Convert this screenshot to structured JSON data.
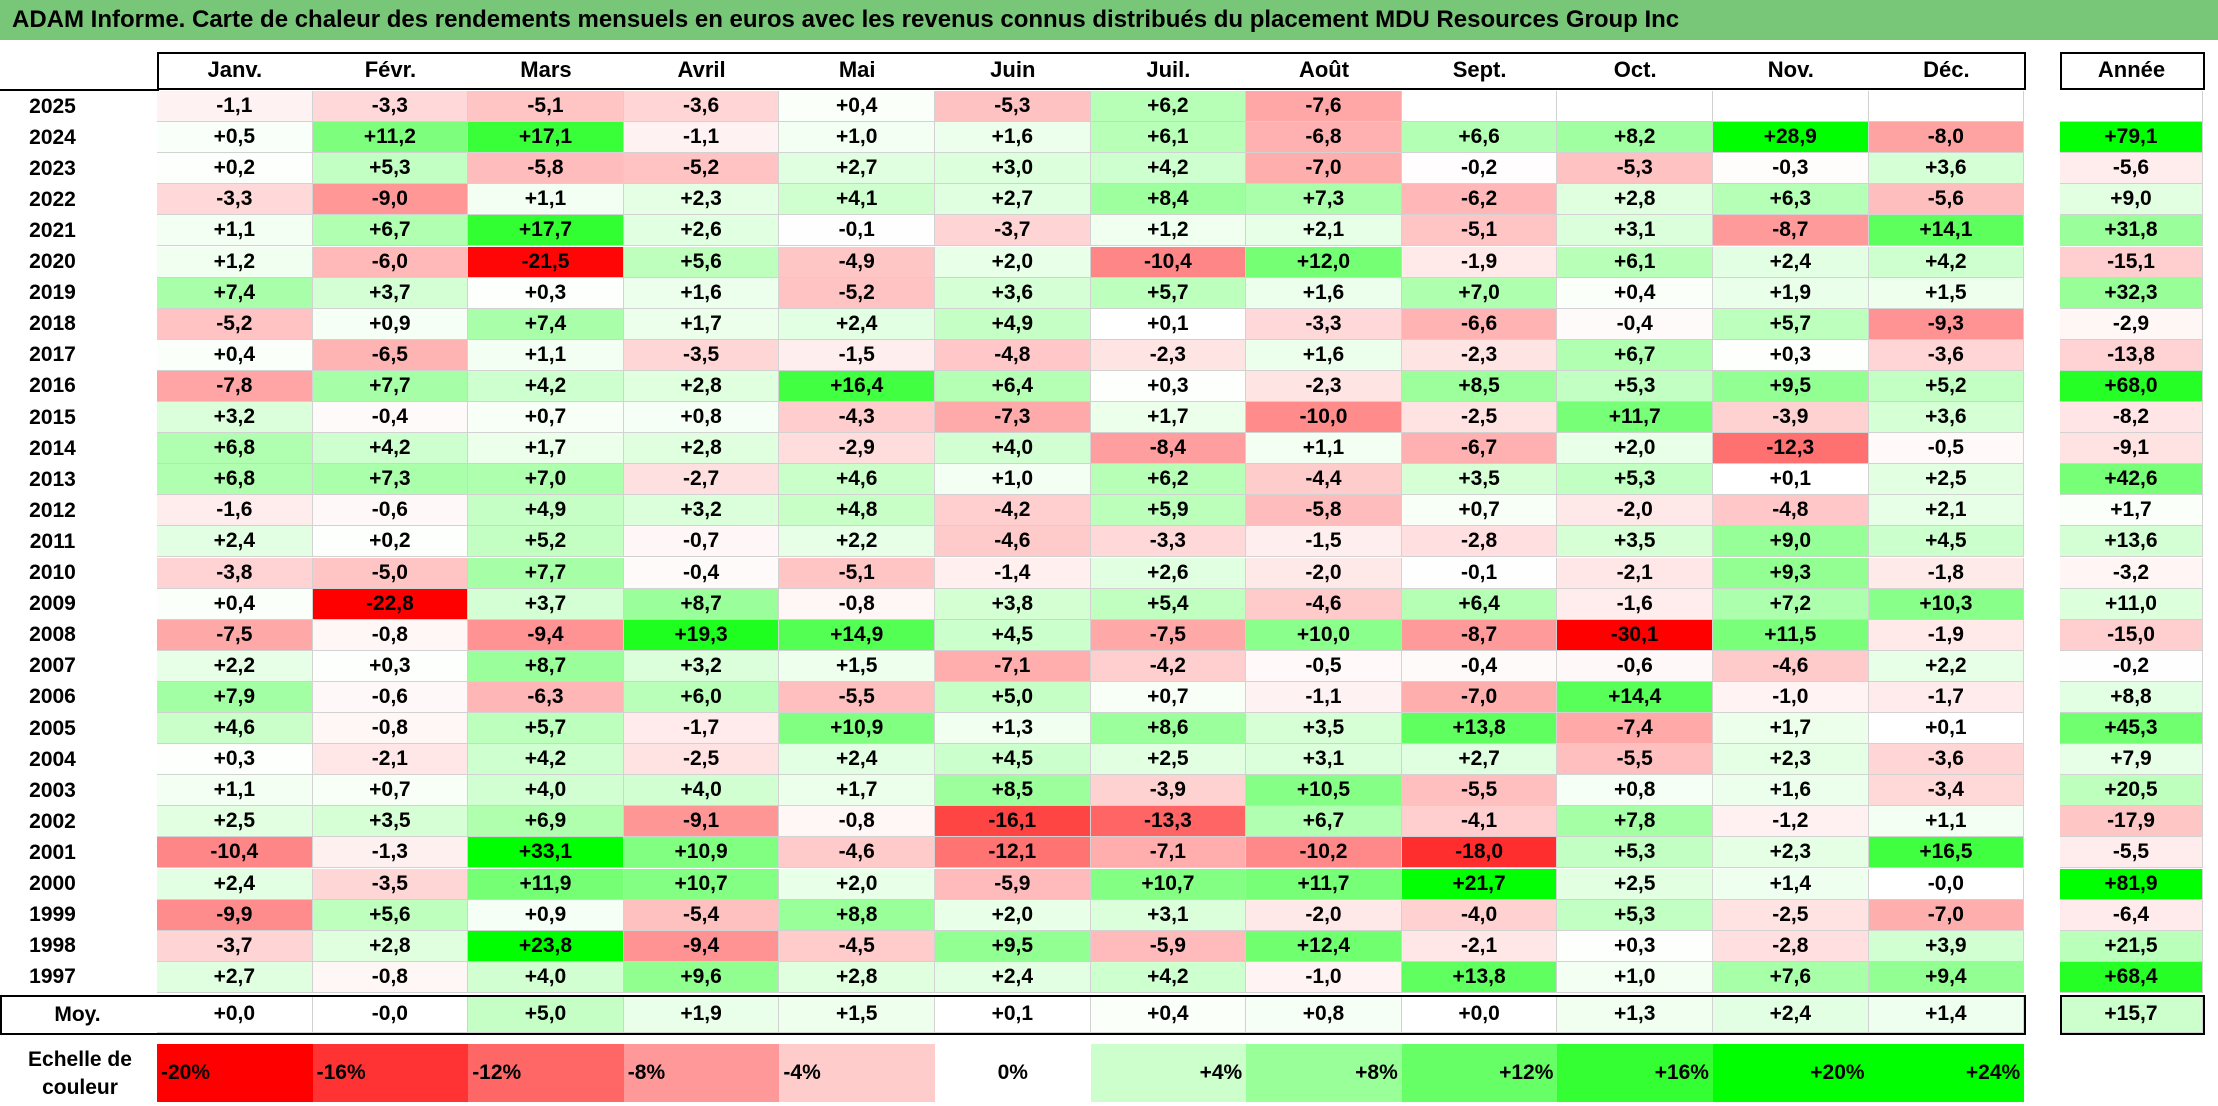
{
  "title": "ADAM Informe. Carte de chaleur des rendements mensuels en euros avec les revenus connus distribués du placement MDU Resources Group Inc",
  "colors": {
    "title_bg": "#78c678",
    "negative_max": "#ff0000",
    "neutral": "#ffffff",
    "positive_max": "#00ff00"
  },
  "chart_data": {
    "type": "heatmap",
    "months": [
      "Janv.",
      "Févr.",
      "Mars",
      "Avril",
      "Mai",
      "Juin",
      "Juil.",
      "Août",
      "Sept.",
      "Oct.",
      "Nov.",
      "Déc."
    ],
    "year_col_label": "Année",
    "avg_label": "Moy.",
    "rows": [
      {
        "year": "2025",
        "values": [
          "-1,1",
          "-3,3",
          "-5,1",
          "-3,6",
          "+0,4",
          "-5,3",
          "+6,2",
          "-7,6",
          "",
          "",
          "",
          ""
        ],
        "annual": ""
      },
      {
        "year": "2024",
        "values": [
          "+0,5",
          "+11,2",
          "+17,1",
          "-1,1",
          "+1,0",
          "+1,6",
          "+6,1",
          "-6,8",
          "+6,6",
          "+8,2",
          "+28,9",
          "-8,0"
        ],
        "annual": "+79,1"
      },
      {
        "year": "2023",
        "values": [
          "+0,2",
          "+5,3",
          "-5,8",
          "-5,2",
          "+2,7",
          "+3,0",
          "+4,2",
          "-7,0",
          "-0,2",
          "-5,3",
          "-0,3",
          "+3,6"
        ],
        "annual": "-5,6"
      },
      {
        "year": "2022",
        "values": [
          "-3,3",
          "-9,0",
          "+1,1",
          "+2,3",
          "+4,1",
          "+2,7",
          "+8,4",
          "+7,3",
          "-6,2",
          "+2,8",
          "+6,3",
          "-5,6"
        ],
        "annual": "+9,0"
      },
      {
        "year": "2021",
        "values": [
          "+1,1",
          "+6,7",
          "+17,7",
          "+2,6",
          "-0,1",
          "-3,7",
          "+1,2",
          "+2,1",
          "-5,1",
          "+3,1",
          "-8,7",
          "+14,1"
        ],
        "annual": "+31,8"
      },
      {
        "year": "2020",
        "values": [
          "+1,2",
          "-6,0",
          "-21,5",
          "+5,6",
          "-4,9",
          "+2,0",
          "-10,4",
          "+12,0",
          "-1,9",
          "+6,1",
          "+2,4",
          "+4,2"
        ],
        "annual": "-15,1"
      },
      {
        "year": "2019",
        "values": [
          "+7,4",
          "+3,7",
          "+0,3",
          "+1,6",
          "-5,2",
          "+3,6",
          "+5,7",
          "+1,6",
          "+7,0",
          "+0,4",
          "+1,9",
          "+1,5"
        ],
        "annual": "+32,3"
      },
      {
        "year": "2018",
        "values": [
          "-5,2",
          "+0,9",
          "+7,4",
          "+1,7",
          "+2,4",
          "+4,9",
          "+0,1",
          "-3,3",
          "-6,6",
          "-0,4",
          "+5,7",
          "-9,3"
        ],
        "annual": "-2,9"
      },
      {
        "year": "2017",
        "values": [
          "+0,4",
          "-6,5",
          "+1,1",
          "-3,5",
          "-1,5",
          "-4,8",
          "-2,3",
          "+1,6",
          "-2,3",
          "+6,7",
          "+0,3",
          "-3,6"
        ],
        "annual": "-13,8"
      },
      {
        "year": "2016",
        "values": [
          "-7,8",
          "+7,7",
          "+4,2",
          "+2,8",
          "+16,4",
          "+6,4",
          "+0,3",
          "-2,3",
          "+8,5",
          "+5,3",
          "+9,5",
          "+5,2"
        ],
        "annual": "+68,0"
      },
      {
        "year": "2015",
        "values": [
          "+3,2",
          "-0,4",
          "+0,7",
          "+0,8",
          "-4,3",
          "-7,3",
          "+1,7",
          "-10,0",
          "-2,5",
          "+11,7",
          "-3,9",
          "+3,6"
        ],
        "annual": "-8,2"
      },
      {
        "year": "2014",
        "values": [
          "+6,8",
          "+4,2",
          "+1,7",
          "+2,8",
          "-2,9",
          "+4,0",
          "-8,4",
          "+1,1",
          "-6,7",
          "+2,0",
          "-12,3",
          "-0,5"
        ],
        "annual": "-9,1"
      },
      {
        "year": "2013",
        "values": [
          "+6,8",
          "+7,3",
          "+7,0",
          "-2,7",
          "+4,6",
          "+1,0",
          "+6,2",
          "-4,4",
          "+3,5",
          "+5,3",
          "+0,1",
          "+2,5"
        ],
        "annual": "+42,6"
      },
      {
        "year": "2012",
        "values": [
          "-1,6",
          "-0,6",
          "+4,9",
          "+3,2",
          "+4,8",
          "-4,2",
          "+5,9",
          "-5,8",
          "+0,7",
          "-2,0",
          "-4,8",
          "+2,1"
        ],
        "annual": "+1,7"
      },
      {
        "year": "2011",
        "values": [
          "+2,4",
          "+0,2",
          "+5,2",
          "-0,7",
          "+2,2",
          "-4,6",
          "-3,3",
          "-1,5",
          "-2,8",
          "+3,5",
          "+9,0",
          "+4,5"
        ],
        "annual": "+13,6"
      },
      {
        "year": "2010",
        "values": [
          "-3,8",
          "-5,0",
          "+7,7",
          "-0,4",
          "-5,1",
          "-1,4",
          "+2,6",
          "-2,0",
          "-0,1",
          "-2,1",
          "+9,3",
          "-1,8"
        ],
        "annual": "-3,2"
      },
      {
        "year": "2009",
        "values": [
          "+0,4",
          "-22,8",
          "+3,7",
          "+8,7",
          "-0,8",
          "+3,8",
          "+5,4",
          "-4,6",
          "+6,4",
          "-1,6",
          "+7,2",
          "+10,3"
        ],
        "annual": "+11,0"
      },
      {
        "year": "2008",
        "values": [
          "-7,5",
          "-0,8",
          "-9,4",
          "+19,3",
          "+14,9",
          "+4,5",
          "-7,5",
          "+10,0",
          "-8,7",
          "-30,1",
          "+11,5",
          "-1,9"
        ],
        "annual": "-15,0"
      },
      {
        "year": "2007",
        "values": [
          "+2,2",
          "+0,3",
          "+8,7",
          "+3,2",
          "+1,5",
          "-7,1",
          "-4,2",
          "-0,5",
          "-0,4",
          "-0,6",
          "-4,6",
          "+2,2"
        ],
        "annual": "-0,2"
      },
      {
        "year": "2006",
        "values": [
          "+7,9",
          "-0,6",
          "-6,3",
          "+6,0",
          "-5,5",
          "+5,0",
          "+0,7",
          "-1,1",
          "-7,0",
          "+14,4",
          "-1,0",
          "-1,7"
        ],
        "annual": "+8,8"
      },
      {
        "year": "2005",
        "values": [
          "+4,6",
          "-0,8",
          "+5,7",
          "-1,7",
          "+10,9",
          "+1,3",
          "+8,6",
          "+3,5",
          "+13,8",
          "-7,4",
          "+1,7",
          "+0,1"
        ],
        "annual": "+45,3"
      },
      {
        "year": "2004",
        "values": [
          "+0,3",
          "-2,1",
          "+4,2",
          "-2,5",
          "+2,4",
          "+4,5",
          "+2,5",
          "+3,1",
          "+2,7",
          "-5,5",
          "+2,3",
          "-3,6"
        ],
        "annual": "+7,9"
      },
      {
        "year": "2003",
        "values": [
          "+1,1",
          "+0,7",
          "+4,0",
          "+4,0",
          "+1,7",
          "+8,5",
          "-3,9",
          "+10,5",
          "-5,5",
          "+0,8",
          "+1,6",
          "-3,4"
        ],
        "annual": "+20,5"
      },
      {
        "year": "2002",
        "values": [
          "+2,5",
          "+3,5",
          "+6,9",
          "-9,1",
          "-0,8",
          "-16,1",
          "-13,3",
          "+6,7",
          "-4,1",
          "+7,8",
          "-1,2",
          "+1,1"
        ],
        "annual": "-17,9"
      },
      {
        "year": "2001",
        "values": [
          "-10,4",
          "-1,3",
          "+33,1",
          "+10,9",
          "-4,6",
          "-12,1",
          "-7,1",
          "-10,2",
          "-18,0",
          "+5,3",
          "+2,3",
          "+16,5"
        ],
        "annual": "-5,5"
      },
      {
        "year": "2000",
        "values": [
          "+2,4",
          "-3,5",
          "+11,9",
          "+10,7",
          "+2,0",
          "-5,9",
          "+10,7",
          "+11,7",
          "+21,7",
          "+2,5",
          "+1,4",
          "-0,0"
        ],
        "annual": "+81,9"
      },
      {
        "year": "1999",
        "values": [
          "-9,9",
          "+5,6",
          "+0,9",
          "-5,4",
          "+8,8",
          "+2,0",
          "+3,1",
          "-2,0",
          "-4,0",
          "+5,3",
          "-2,5",
          "-7,0"
        ],
        "annual": "-6,4"
      },
      {
        "year": "1998",
        "values": [
          "-3,7",
          "+2,8",
          "+23,8",
          "-9,4",
          "-4,5",
          "+9,5",
          "-5,9",
          "+12,4",
          "-2,1",
          "+0,3",
          "-2,8",
          "+3,9"
        ],
        "annual": "+21,5"
      },
      {
        "year": "1997",
        "values": [
          "+2,7",
          "-0,8",
          "+4,0",
          "+9,6",
          "+2,8",
          "+2,4",
          "+4,2",
          "-1,0",
          "+13,8",
          "+1,0",
          "+7,6",
          "+9,4"
        ],
        "annual": "+68,4"
      }
    ],
    "average": {
      "values": [
        "+0,0",
        "-0,0",
        "+5,0",
        "+1,9",
        "+1,5",
        "+0,1",
        "+0,4",
        "+0,8",
        "+0,0",
        "+1,3",
        "+2,4",
        "+1,4"
      ],
      "annual": "+15,7"
    },
    "legend": {
      "label": "Echelle de\ncouleur",
      "items": [
        {
          "text": "-20%",
          "value": -20
        },
        {
          "text": "-16%",
          "value": -16
        },
        {
          "text": "-12%",
          "value": -12
        },
        {
          "text": "-8%",
          "value": -8
        },
        {
          "text": "-4%",
          "value": -4
        },
        {
          "text": "0%",
          "value": 0
        },
        {
          "text": "+4%",
          "value": 4
        },
        {
          "text": "+8%",
          "value": 8
        },
        {
          "text": "+12%",
          "value": 12
        },
        {
          "text": "+16%",
          "value": 16
        },
        {
          "text": "+20%",
          "value": 20
        },
        {
          "text": "+24%",
          "value": 24
        }
      ]
    }
  }
}
